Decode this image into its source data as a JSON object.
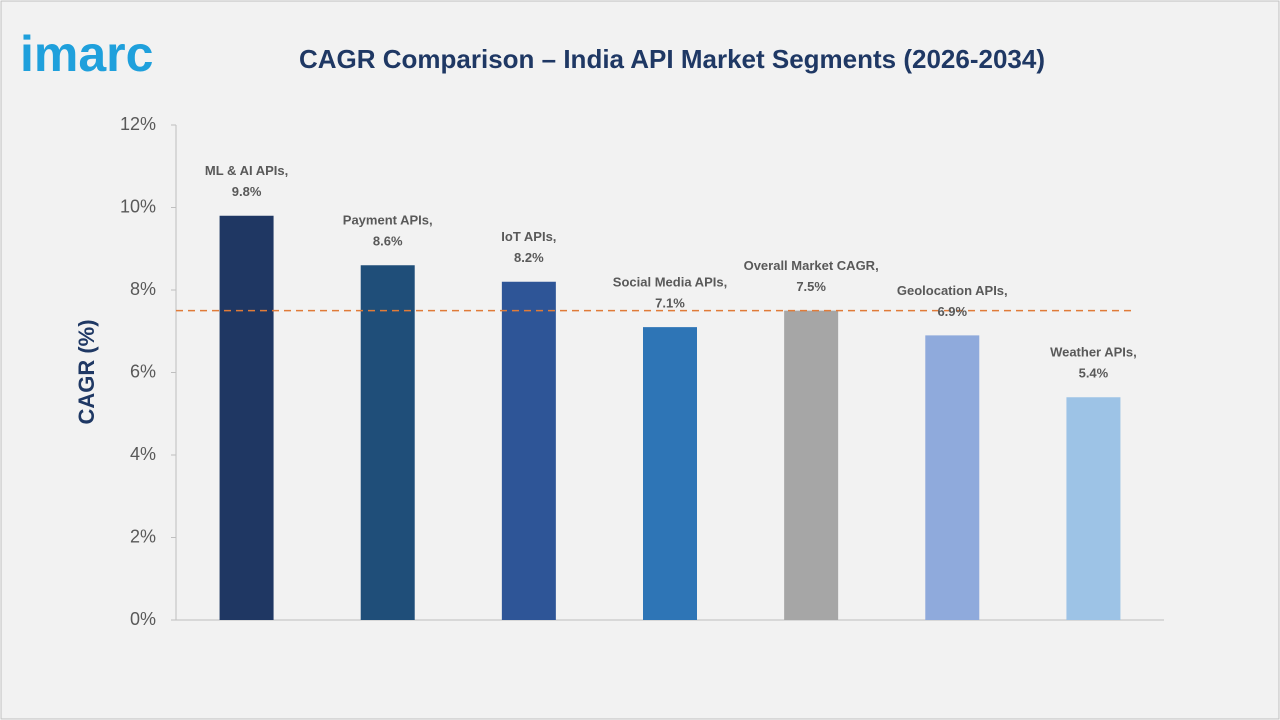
{
  "logo": "imarc",
  "chart_data": {
    "type": "bar",
    "title": "CAGR Comparison – India API Market Segments (2026-2034)",
    "y_label": "CAGR (%)",
    "categories": [
      "ML & AI APIs,",
      "Payment APIs,",
      "IoT APIs,",
      "Social Media APIs,",
      "Overall Market CAGR,",
      "Geolocation APIs,",
      "Weather APIs,"
    ],
    "values": [
      9.8,
      8.6,
      8.2,
      7.1,
      7.5,
      6.9,
      5.4
    ],
    "value_labels": [
      "9.8%",
      "8.6%",
      "8.2%",
      "7.1%",
      "7.5%",
      "6.9%",
      "5.4%"
    ],
    "colors": [
      "#1f3763",
      "#1f4e79",
      "#2e5597",
      "#2e75b6",
      "#a6a6a6",
      "#8faadc",
      "#9dc3e6"
    ],
    "reference_line": {
      "value": 7.5,
      "color": "#e07b39"
    },
    "ylim": [
      0,
      12
    ],
    "yticks": [
      {
        "value": 0,
        "label": "0%"
      },
      {
        "value": 2,
        "label": "2%"
      },
      {
        "value": 4,
        "label": "4%"
      },
      {
        "value": 6,
        "label": "6%"
      },
      {
        "value": 8,
        "label": "8%"
      },
      {
        "value": 10,
        "label": "10%"
      },
      {
        "value": 12,
        "label": "12%"
      }
    ],
    "grid": false
  }
}
